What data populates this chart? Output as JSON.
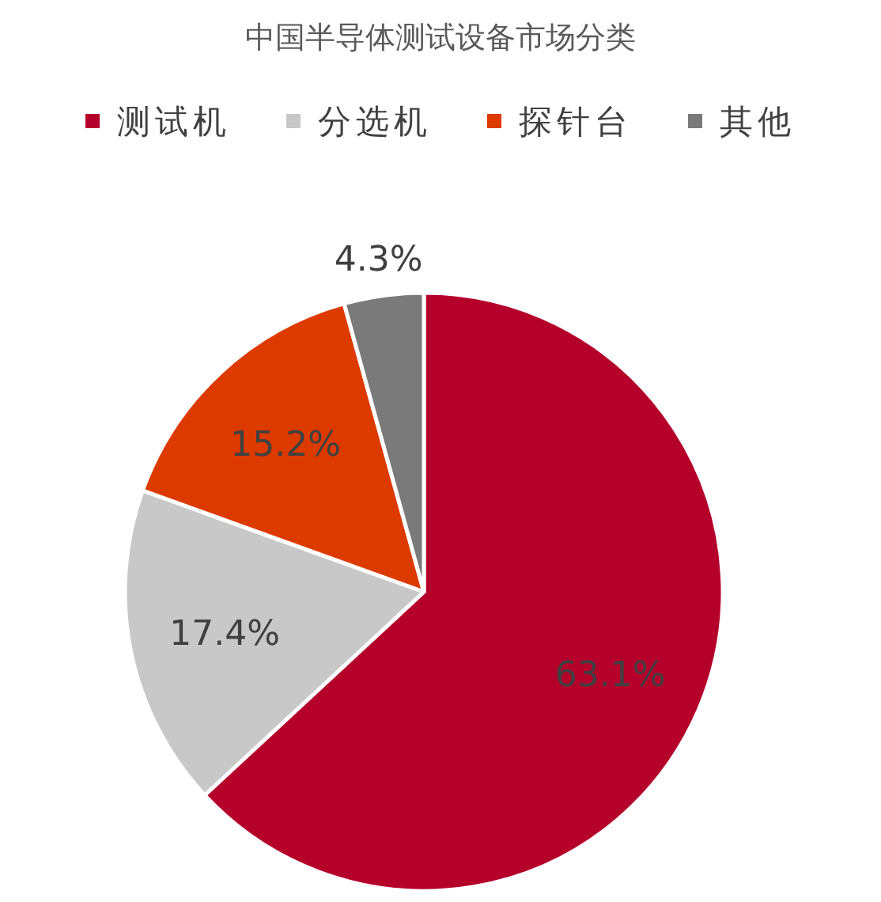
{
  "chart_data": {
    "type": "pie",
    "title": "中国半导体测试设备市场分类",
    "categories": [
      "测试机",
      "分选机",
      "探针台",
      "其他"
    ],
    "values": [
      63.1,
      17.4,
      15.2,
      4.3
    ],
    "colors": [
      "#b5002b",
      "#c8c8c8",
      "#dd3a00",
      "#7a7a7a"
    ],
    "value_labels": [
      "63.1%",
      "17.4%",
      "15.2%",
      "4.3%"
    ],
    "legend": "top"
  }
}
